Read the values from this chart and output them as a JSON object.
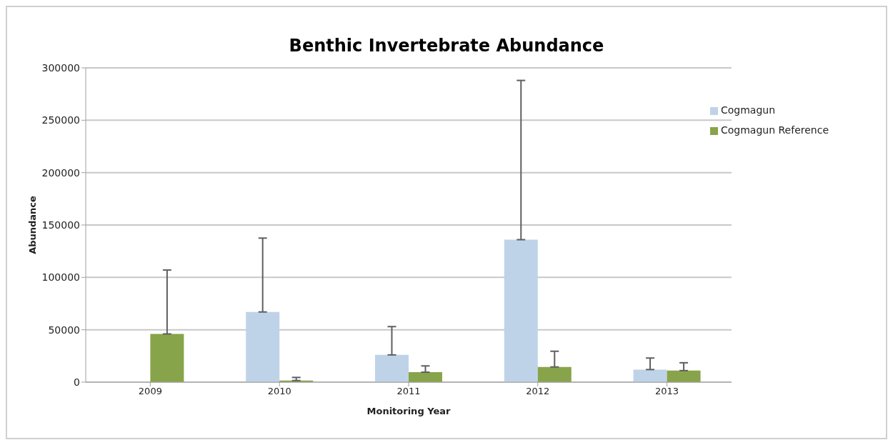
{
  "chart_data": {
    "type": "bar",
    "title": "Benthic Invertebrate Abundance",
    "xlabel": "Monitoring Year",
    "ylabel": "Abundance",
    "categories": [
      "2009",
      "2010",
      "2011",
      "2012",
      "2013"
    ],
    "series": [
      {
        "name": "Cogmagun",
        "color": "#bfd3e8",
        "values": [
          null,
          67000,
          26000,
          136000,
          12000
        ],
        "errors": [
          null,
          [
            67000,
            137500
          ],
          [
            26000,
            53000
          ],
          [
            136000,
            288000
          ],
          [
            12000,
            23000
          ]
        ]
      },
      {
        "name": "Cogmagun Reference",
        "color": "#88a44a",
        "values": [
          46000,
          1500,
          9500,
          14500,
          11000
        ],
        "errors": [
          [
            46000,
            107000
          ],
          [
            1500,
            4500
          ],
          [
            9500,
            15500
          ],
          [
            14500,
            29500
          ],
          [
            11000,
            18500
          ]
        ]
      }
    ],
    "ylim": [
      0,
      300000
    ],
    "yticks": [
      0,
      50000,
      100000,
      150000,
      200000,
      250000,
      300000
    ],
    "grid": "y",
    "legend": "top right"
  }
}
